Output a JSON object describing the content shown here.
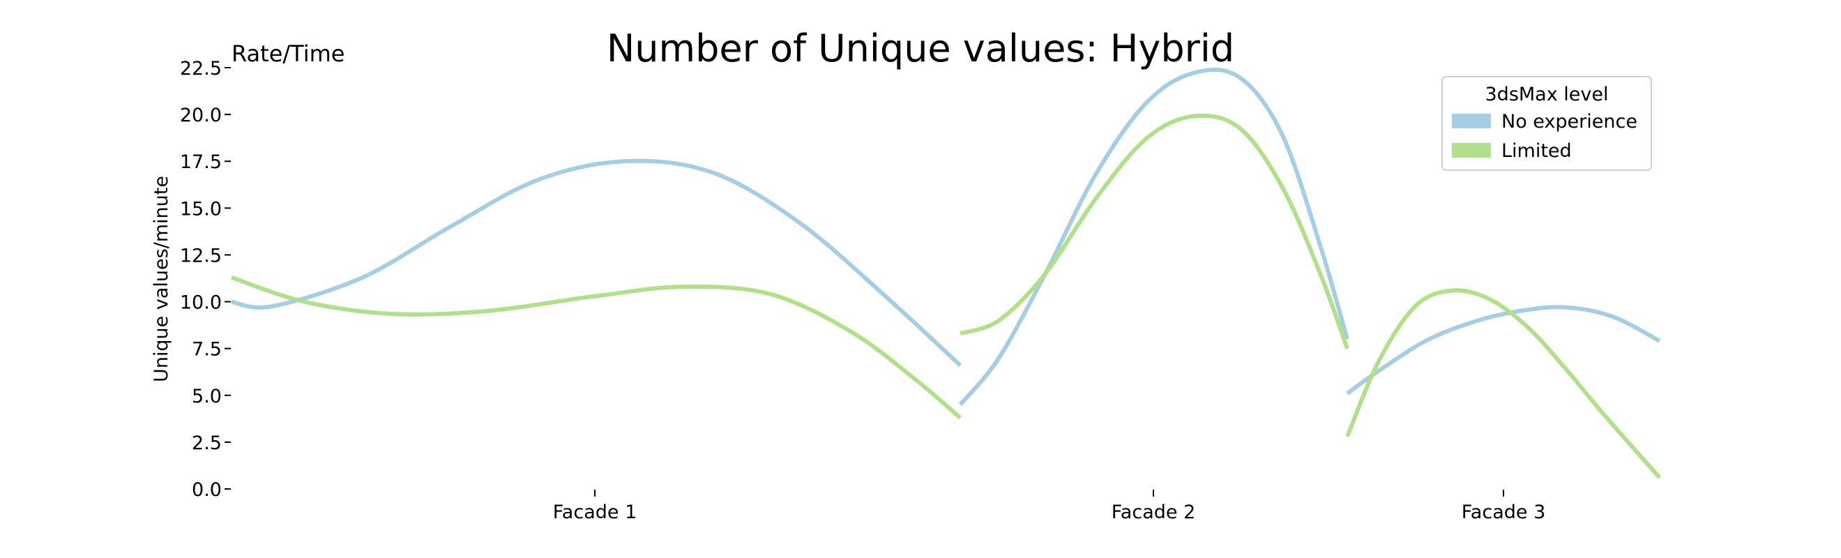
{
  "chart_data": {
    "type": "line",
    "title": "Number of Unique values: Hybrid",
    "corner_label": "Rate/Time",
    "ylabel": "Unique values/minute",
    "xlabel": "",
    "ylim": [
      0,
      22.5
    ],
    "yticks": [
      "0.0",
      "2.5",
      "5.0",
      "7.5",
      "10.0",
      "12.5",
      "15.0",
      "17.5",
      "20.0",
      "22.5"
    ],
    "categories": [
      "Facade 1",
      "Facade 2",
      "Facade 3"
    ],
    "grid": false,
    "legend": {
      "title": "3dsMax level",
      "placement": "top-right"
    },
    "series": [
      {
        "name": "No experience",
        "color": "#a6cee3",
        "segments": [
          {
            "category": "Facade 1",
            "points": [
              [
                0.0,
                10.0
              ],
              [
                0.055,
                9.75
              ],
              [
                0.18,
                11.3
              ],
              [
                0.3,
                14.0
              ],
              [
                0.42,
                16.5
              ],
              [
                0.54,
                17.5
              ],
              [
                0.66,
                16.9
              ],
              [
                0.78,
                14.2
              ],
              [
                0.9,
                10.2
              ],
              [
                1.0,
                6.6
              ]
            ]
          },
          {
            "category": "Facade 2",
            "points": [
              [
                0.0,
                4.5
              ],
              [
                0.1,
                7.0
              ],
              [
                0.22,
                11.5
              ],
              [
                0.35,
                16.8
              ],
              [
                0.48,
                20.6
              ],
              [
                0.6,
                22.2
              ],
              [
                0.72,
                22.0
              ],
              [
                0.83,
                19.0
              ],
              [
                0.93,
                13.0
              ],
              [
                1.0,
                8.0
              ]
            ]
          },
          {
            "category": "Facade 3",
            "points": [
              [
                0.0,
                5.1
              ],
              [
                0.1,
                6.3
              ],
              [
                0.25,
                7.9
              ],
              [
                0.4,
                8.9
              ],
              [
                0.55,
                9.5
              ],
              [
                0.7,
                9.7
              ],
              [
                0.85,
                9.2
              ],
              [
                1.0,
                7.9
              ]
            ]
          }
        ]
      },
      {
        "name": "Limited",
        "color": "#b2df8a",
        "segments": [
          {
            "category": "Facade 1",
            "points": [
              [
                0.0,
                11.3
              ],
              [
                0.1,
                10.0
              ],
              [
                0.22,
                9.35
              ],
              [
                0.35,
                9.5
              ],
              [
                0.5,
                10.3
              ],
              [
                0.62,
                10.8
              ],
              [
                0.74,
                10.4
              ],
              [
                0.85,
                8.4
              ],
              [
                0.94,
                5.8
              ],
              [
                1.0,
                3.8
              ]
            ]
          },
          {
            "category": "Facade 2",
            "points": [
              [
                0.0,
                8.3
              ],
              [
                0.1,
                9.0
              ],
              [
                0.22,
                11.5
              ],
              [
                0.35,
                15.5
              ],
              [
                0.48,
                18.7
              ],
              [
                0.6,
                19.9
              ],
              [
                0.72,
                19.3
              ],
              [
                0.83,
                16.2
              ],
              [
                0.93,
                11.5
              ],
              [
                1.0,
                7.5
              ]
            ]
          },
          {
            "category": "Facade 3",
            "points": [
              [
                0.0,
                2.8
              ],
              [
                0.1,
                6.8
              ],
              [
                0.22,
                9.8
              ],
              [
                0.34,
                10.6
              ],
              [
                0.46,
                10.1
              ],
              [
                0.58,
                8.6
              ],
              [
                0.7,
                6.4
              ],
              [
                0.82,
                4.0
              ],
              [
                1.0,
                0.6
              ]
            ]
          }
        ]
      }
    ]
  }
}
